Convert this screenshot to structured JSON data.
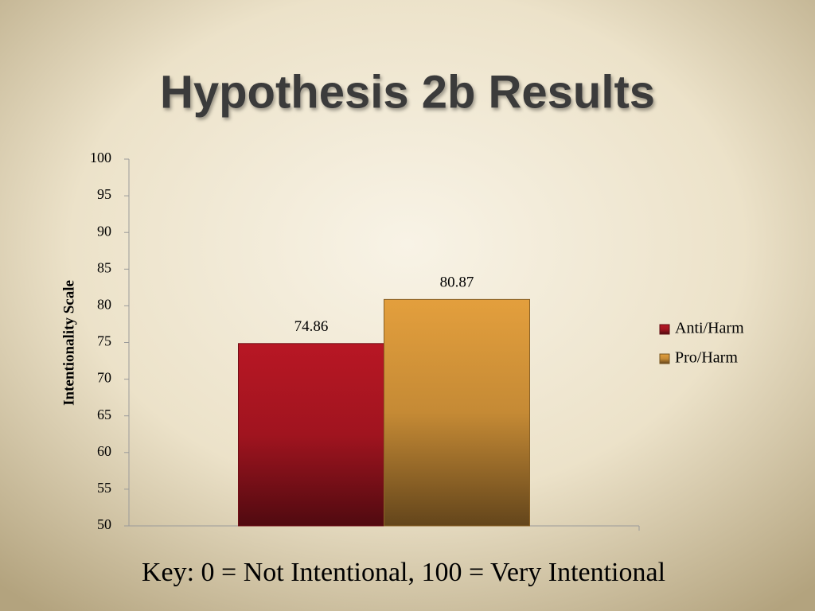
{
  "chart_data": {
    "type": "bar",
    "title": "Hypothesis 2b Results",
    "y_label": "Intentionality Scale",
    "categories": [
      null
    ],
    "series": [
      {
        "name": "Anti/Harm",
        "color": "#a0141f",
        "values": [
          74.86
        ]
      },
      {
        "name": "Pro/Harm",
        "color": "#c58a35",
        "values": [
          80.87
        ]
      }
    ],
    "ylim": [
      50,
      100
    ],
    "yticks": [
      50,
      55,
      60,
      65,
      70,
      75,
      80,
      85,
      90,
      95,
      100
    ],
    "legend": "right",
    "annotation": "Key: 0 = Not Intentional, 100 = Very Intentional"
  }
}
